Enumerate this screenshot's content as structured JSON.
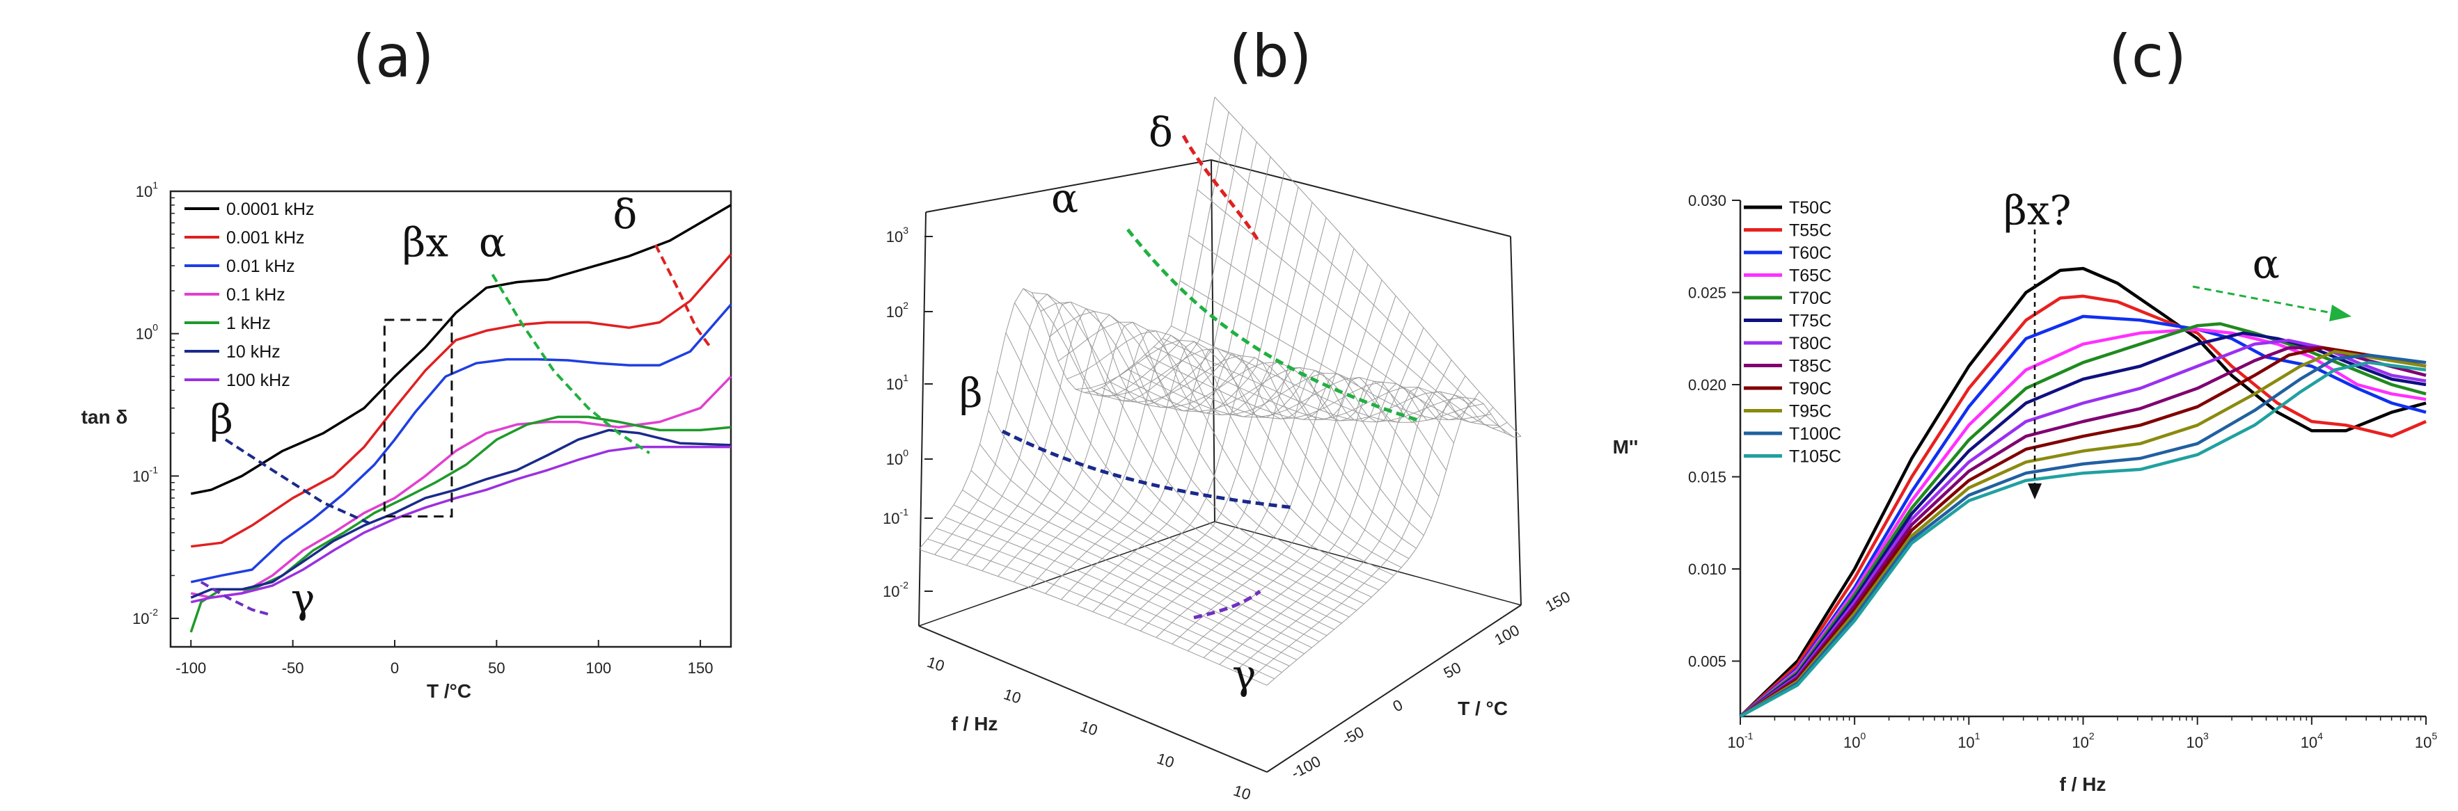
{
  "panels": [
    {
      "label": "(a)"
    },
    {
      "label": "(b)"
    },
    {
      "label": "(c)"
    }
  ],
  "chart_data": [
    {
      "type": "line",
      "panel": "(a)",
      "xlabel": "T /°C",
      "ylabel": "tan δ",
      "yscale": "log",
      "xlim": [
        -110,
        165
      ],
      "ylim_exp": [
        -2.2,
        1.0
      ],
      "x_ticks": [
        "-100",
        "-50",
        "0",
        "50",
        "100",
        "150"
      ],
      "x_tick_values": [
        -100,
        -50,
        0,
        50,
        100,
        150
      ],
      "y_ticks": [
        {
          "base": "10",
          "exp": "-2",
          "value": -2
        },
        {
          "base": "10",
          "exp": "-1",
          "value": -1
        },
        {
          "base": "10",
          "exp": "0",
          "value": 0
        },
        {
          "base": "10",
          "exp": "1",
          "value": 1
        }
      ],
      "series": [
        {
          "name": "0.0001 kHz",
          "color": "#000000",
          "x": [
            -100,
            -90,
            -75,
            -55,
            -35,
            -15,
            0,
            15,
            30,
            45,
            60,
            75,
            95,
            115,
            135,
            150,
            165
          ],
          "y": [
            0.075,
            0.08,
            0.1,
            0.15,
            0.2,
            0.3,
            0.5,
            0.8,
            1.4,
            2.1,
            2.3,
            2.4,
            2.9,
            3.5,
            4.5,
            6.0,
            8.0
          ]
        },
        {
          "name": "0.001 kHz",
          "color": "#e02020",
          "x": [
            -100,
            -85,
            -70,
            -50,
            -30,
            -15,
            0,
            15,
            30,
            45,
            60,
            75,
            95,
            115,
            130,
            145,
            165
          ],
          "y": [
            0.032,
            0.034,
            0.045,
            0.07,
            0.1,
            0.16,
            0.3,
            0.55,
            0.9,
            1.05,
            1.15,
            1.2,
            1.2,
            1.1,
            1.2,
            1.7,
            3.6
          ]
        },
        {
          "name": "0.01 kHz",
          "color": "#1f3fe0",
          "x": [
            -100,
            -85,
            -70,
            -55,
            -40,
            -25,
            -10,
            0,
            10,
            25,
            40,
            55,
            70,
            85,
            100,
            115,
            130,
            145,
            165
          ],
          "y": [
            0.018,
            0.02,
            0.022,
            0.035,
            0.05,
            0.075,
            0.12,
            0.18,
            0.28,
            0.5,
            0.62,
            0.66,
            0.66,
            0.65,
            0.62,
            0.6,
            0.6,
            0.75,
            1.6
          ]
        },
        {
          "name": "0.1 kHz",
          "color": "#e040d0",
          "x": [
            -100,
            -90,
            -75,
            -60,
            -45,
            -30,
            -15,
            0,
            15,
            30,
            45,
            60,
            75,
            90,
            110,
            130,
            150,
            165
          ],
          "y": [
            0.015,
            0.014,
            0.015,
            0.02,
            0.03,
            0.04,
            0.055,
            0.07,
            0.1,
            0.15,
            0.2,
            0.23,
            0.24,
            0.24,
            0.22,
            0.24,
            0.3,
            0.5
          ]
        },
        {
          "name": "1 kHz",
          "color": "#1f9a2a",
          "x": [
            -100,
            -95,
            -85,
            -70,
            -55,
            -40,
            -25,
            -10,
            5,
            20,
            35,
            50,
            65,
            80,
            95,
            110,
            130,
            150,
            165
          ],
          "y": [
            0.008,
            0.013,
            0.016,
            0.016,
            0.02,
            0.03,
            0.04,
            0.055,
            0.07,
            0.09,
            0.12,
            0.18,
            0.23,
            0.26,
            0.26,
            0.24,
            0.21,
            0.21,
            0.22
          ]
        },
        {
          "name": "10 kHz",
          "color": "#1a2a8a",
          "x": [
            -100,
            -90,
            -75,
            -60,
            -45,
            -30,
            -15,
            0,
            15,
            30,
            45,
            60,
            75,
            90,
            105,
            120,
            140,
            165
          ],
          "y": [
            0.014,
            0.016,
            0.016,
            0.018,
            0.025,
            0.035,
            0.045,
            0.055,
            0.07,
            0.08,
            0.095,
            0.11,
            0.14,
            0.18,
            0.21,
            0.2,
            0.17,
            0.165
          ]
        },
        {
          "name": "100 kHz",
          "color": "#9b30e0",
          "x": [
            -100,
            -90,
            -75,
            -60,
            -45,
            -30,
            -15,
            0,
            15,
            30,
            45,
            60,
            75,
            90,
            105,
            120,
            140,
            165
          ],
          "y": [
            0.013,
            0.014,
            0.015,
            0.017,
            0.022,
            0.03,
            0.04,
            0.05,
            0.06,
            0.07,
            0.08,
            0.095,
            0.11,
            0.13,
            0.15,
            0.16,
            0.16,
            0.16
          ]
        }
      ],
      "guides": [
        {
          "color": "#1a2a8a",
          "x": [
            -83,
            -60,
            -35,
            -10
          ],
          "y": [
            0.18,
            0.11,
            0.065,
            0.045
          ]
        },
        {
          "color": "#e02020",
          "x": [
            128,
            138,
            148,
            155
          ],
          "y": [
            4.2,
            2.2,
            1.1,
            0.8
          ]
        },
        {
          "color": "#20b040",
          "x": [
            48,
            62,
            78,
            95,
            110,
            125
          ],
          "y": [
            2.6,
            1.2,
            0.55,
            0.3,
            0.2,
            0.145
          ]
        },
        {
          "color": "#7030c0",
          "x": [
            -95,
            -82,
            -70,
            -60
          ],
          "y": [
            0.018,
            0.014,
            0.0115,
            0.0105
          ]
        }
      ],
      "annotations": [
        {
          "text": "β",
          "x": -85,
          "y": 0.2
        },
        {
          "text": "γ",
          "x": -45,
          "y": 0.011
        },
        {
          "text": "βx",
          "x": 15,
          "y": 3.5
        },
        {
          "text": "α",
          "x": 48,
          "y": 3.5
        },
        {
          "text": "δ",
          "x": 113,
          "y": 5.5
        }
      ],
      "box": {
        "x0": -5,
        "x1": 28,
        "y0": 0.052,
        "y1": 1.25
      }
    },
    {
      "type": "surface3d",
      "panel": "(b)",
      "xlabel": "f / Hz",
      "ylabel": "T / °C",
      "zscale": "log",
      "z_ticks": [
        {
          "base": "10",
          "exp": "3",
          "value": 3
        },
        {
          "base": "10",
          "exp": "2",
          "value": 2
        },
        {
          "base": "10",
          "exp": "1",
          "value": 1
        },
        {
          "base": "10",
          "exp": "0",
          "value": 0
        },
        {
          "base": "10",
          "exp": "-1",
          "value": -1
        },
        {
          "base": "10",
          "exp": "-2",
          "value": -2
        }
      ],
      "f_ticks": [
        "10",
        "10",
        "10",
        "10",
        "10"
      ],
      "T_ticks": [
        "150",
        "100",
        "50",
        "0",
        "-50",
        "-100"
      ],
      "annotations": [
        {
          "text": "δ"
        },
        {
          "text": "α"
        },
        {
          "text": "β"
        },
        {
          "text": "γ"
        }
      ]
    },
    {
      "type": "line",
      "panel": "(c)",
      "xlabel": "f / Hz",
      "ylabel": "M''",
      "xscale": "log",
      "xlim_exp": [
        -1,
        5
      ],
      "ylim": [
        0.002,
        0.03
      ],
      "x_ticks": [
        {
          "base": "10",
          "exp": "-1",
          "value": -1
        },
        {
          "base": "10",
          "exp": "0",
          "value": 0
        },
        {
          "base": "10",
          "exp": "1",
          "value": 1
        },
        {
          "base": "10",
          "exp": "2",
          "value": 2
        },
        {
          "base": "10",
          "exp": "3",
          "value": 3
        },
        {
          "base": "10",
          "exp": "4",
          "value": 4
        },
        {
          "base": "10",
          "exp": "5",
          "value": 5
        }
      ],
      "y_ticks": [
        "0.005",
        "0.010",
        "0.015",
        "0.020",
        "0.025",
        "0.030"
      ],
      "y_tick_values": [
        0.005,
        0.01,
        0.015,
        0.02,
        0.025,
        0.03
      ],
      "series": [
        {
          "name": "T50C",
          "color": "#000000",
          "x": [
            -1,
            -0.5,
            0,
            0.5,
            1,
            1.5,
            1.8,
            2,
            2.3,
            2.7,
            3,
            3.3,
            3.7,
            4,
            4.3,
            4.7,
            5
          ],
          "y": [
            0.002,
            0.005,
            0.01,
            0.016,
            0.021,
            0.025,
            0.0262,
            0.0263,
            0.0255,
            0.0238,
            0.0225,
            0.0205,
            0.0185,
            0.0175,
            0.0175,
            0.0185,
            0.019
          ]
        },
        {
          "name": "T55C",
          "color": "#e82020",
          "x": [
            -1,
            -0.5,
            0,
            0.5,
            1,
            1.5,
            1.8,
            2,
            2.3,
            2.7,
            3,
            3.3,
            3.7,
            4,
            4.3,
            4.7,
            5
          ],
          "y": [
            0.002,
            0.0048,
            0.0095,
            0.015,
            0.0198,
            0.0235,
            0.0247,
            0.0248,
            0.0245,
            0.0235,
            0.0228,
            0.021,
            0.019,
            0.018,
            0.0178,
            0.0172,
            0.018
          ]
        },
        {
          "name": "T60C",
          "color": "#1030f0",
          "x": [
            -1,
            -0.5,
            0,
            0.5,
            1,
            1.5,
            2,
            2.5,
            3,
            3.3,
            3.6,
            4,
            4.4,
            4.7,
            5
          ],
          "y": [
            0.002,
            0.0046,
            0.009,
            0.0142,
            0.0188,
            0.0225,
            0.0237,
            0.0235,
            0.023,
            0.0225,
            0.0215,
            0.021,
            0.0198,
            0.019,
            0.0185
          ]
        },
        {
          "name": "T65C",
          "color": "#ff30ff",
          "x": [
            -1,
            -0.5,
            0,
            0.5,
            1,
            1.5,
            2,
            2.5,
            3,
            3.3,
            3.7,
            4,
            4.4,
            4.7,
            5
          ],
          "y": [
            0.002,
            0.0045,
            0.0088,
            0.0137,
            0.0178,
            0.0208,
            0.0222,
            0.0228,
            0.023,
            0.0228,
            0.0222,
            0.0215,
            0.02,
            0.0195,
            0.0192
          ]
        },
        {
          "name": "T70C",
          "color": "#1f8a1f",
          "x": [
            -1,
            -0.5,
            0,
            0.5,
            1,
            1.5,
            2,
            2.5,
            3,
            3.2,
            3.5,
            3.9,
            4.3,
            4.7,
            5
          ],
          "y": [
            0.002,
            0.0044,
            0.0086,
            0.0133,
            0.017,
            0.0198,
            0.0212,
            0.0222,
            0.0232,
            0.0233,
            0.0228,
            0.022,
            0.021,
            0.02,
            0.0195
          ]
        },
        {
          "name": "T75C",
          "color": "#101080",
          "x": [
            -1,
            -0.5,
            0,
            0.5,
            1,
            1.5,
            2,
            2.5,
            3,
            3.4,
            3.7,
            4,
            4.4,
            4.7,
            5
          ],
          "y": [
            0.002,
            0.0043,
            0.0084,
            0.013,
            0.0164,
            0.019,
            0.0203,
            0.021,
            0.0222,
            0.0228,
            0.0225,
            0.022,
            0.021,
            0.0203,
            0.02
          ]
        },
        {
          "name": "T80C",
          "color": "#9a30f0",
          "x": [
            -1,
            -0.5,
            0,
            0.5,
            1,
            1.5,
            2,
            2.5,
            3,
            3.5,
            3.8,
            4.1,
            4.4,
            4.7,
            5
          ],
          "y": [
            0.002,
            0.0042,
            0.0082,
            0.0127,
            0.0158,
            0.018,
            0.019,
            0.0198,
            0.021,
            0.0222,
            0.0224,
            0.022,
            0.0212,
            0.0205,
            0.0202
          ]
        },
        {
          "name": "T85C",
          "color": "#800070",
          "x": [
            -1,
            -0.5,
            0,
            0.5,
            1,
            1.5,
            2,
            2.5,
            3,
            3.5,
            3.8,
            4.1,
            4.5,
            5
          ],
          "y": [
            0.002,
            0.0041,
            0.008,
            0.0124,
            0.0153,
            0.0172,
            0.018,
            0.0187,
            0.0198,
            0.0213,
            0.022,
            0.022,
            0.0213,
            0.0205
          ]
        },
        {
          "name": "T90C",
          "color": "#800000",
          "x": [
            -1,
            -0.5,
            0,
            0.5,
            1,
            1.5,
            2,
            2.5,
            3,
            3.5,
            3.8,
            4.1,
            4.5,
            5
          ],
          "y": [
            0.002,
            0.004,
            0.0078,
            0.0121,
            0.0148,
            0.0165,
            0.0172,
            0.0178,
            0.0188,
            0.0205,
            0.0216,
            0.022,
            0.0216,
            0.021
          ]
        },
        {
          "name": "T95C",
          "color": "#8a8a10",
          "x": [
            -1,
            -0.5,
            0,
            0.5,
            1,
            1.5,
            2,
            2.5,
            3,
            3.5,
            3.9,
            4.2,
            4.5,
            5
          ],
          "y": [
            0.002,
            0.0039,
            0.0076,
            0.0118,
            0.0144,
            0.0158,
            0.0164,
            0.0168,
            0.0178,
            0.0195,
            0.021,
            0.0218,
            0.0215,
            0.021
          ]
        },
        {
          "name": "T100C",
          "color": "#2060a0",
          "x": [
            -1,
            -0.5,
            0,
            0.5,
            1,
            1.5,
            2,
            2.5,
            3,
            3.5,
            3.9,
            4.2,
            4.5,
            5
          ],
          "y": [
            0.002,
            0.0038,
            0.0074,
            0.0116,
            0.014,
            0.0152,
            0.0157,
            0.016,
            0.0168,
            0.0186,
            0.0203,
            0.0214,
            0.0216,
            0.0212
          ]
        },
        {
          "name": "T105C",
          "color": "#20a0a0",
          "x": [
            -1,
            -0.5,
            0,
            0.5,
            1,
            1.5,
            2,
            2.5,
            3,
            3.5,
            3.9,
            4.2,
            4.5,
            5
          ],
          "y": [
            0.002,
            0.0037,
            0.0072,
            0.0114,
            0.0137,
            0.0148,
            0.0152,
            0.0154,
            0.0162,
            0.0178,
            0.0196,
            0.0208,
            0.0212,
            0.0208
          ]
        }
      ],
      "annotations": [
        {
          "text": "βx?",
          "x": 1.6,
          "y": 0.0287
        },
        {
          "text": "α",
          "x": 3.6,
          "y": 0.0258
        }
      ]
    }
  ]
}
